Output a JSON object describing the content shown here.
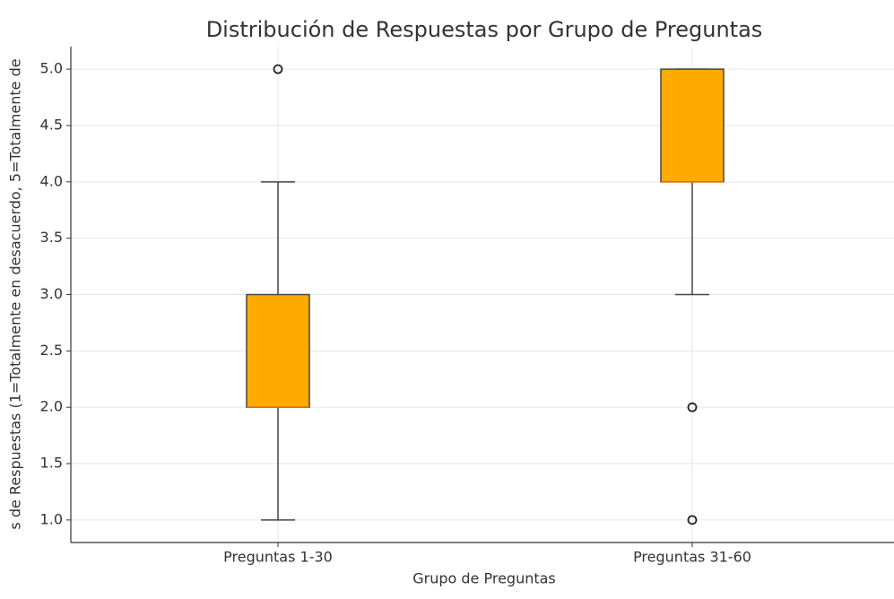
{
  "chart_data": {
    "type": "box",
    "title": "Distribución de Respuestas por Grupo de Preguntas",
    "xlabel": "Grupo de Preguntas",
    "ylabel": "s de Respuestas (1=Totalmente en desacuerdo, 5=Totalmente de",
    "categories": [
      "Preguntas 1-30",
      "Preguntas 31-60"
    ],
    "boxes": [
      {
        "whislo": 1,
        "q1": 2,
        "med": 2,
        "q3": 3,
        "whishi": 4,
        "fliers": [
          5
        ]
      },
      {
        "whislo": 3,
        "q1": 4,
        "med": 4,
        "q3": 5,
        "whishi": 5,
        "fliers": [
          2,
          1
        ]
      }
    ],
    "color": "#ffaa00",
    "median_color": "#e8701a",
    "ylim": [
      0.8,
      5.2
    ],
    "yticks": [
      {
        "value": 1,
        "label": "1.0"
      },
      {
        "value": 1.5,
        "label": "1.5"
      },
      {
        "value": 2,
        "label": "2.0"
      },
      {
        "value": 2.5,
        "label": "2.5"
      },
      {
        "value": 3,
        "label": "3.0"
      },
      {
        "value": 3.5,
        "label": "3.5"
      },
      {
        "value": 4,
        "label": "4.0"
      },
      {
        "value": 4.5,
        "label": "4.5"
      },
      {
        "value": 5,
        "label": "5.0"
      }
    ],
    "grid": true
  }
}
